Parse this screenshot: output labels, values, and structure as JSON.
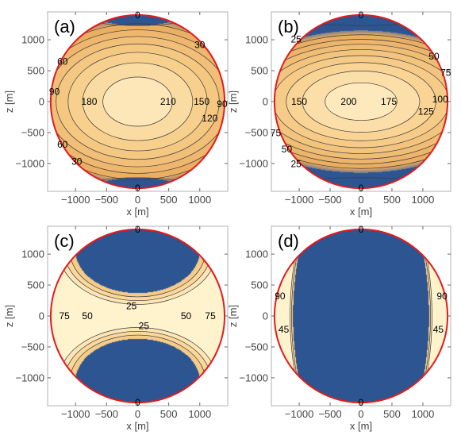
{
  "colors": {
    "dark_blue": "#2c5592",
    "circle_outline": "#e41a1c",
    "contour_line": "#3a3a3a",
    "frame": "#b0b0b0"
  },
  "chart_data": [
    {
      "type": "contour",
      "panel_label": "(a)",
      "xlabel": "x [m]",
      "ylabel": "z [m]",
      "xlim": [
        -1450,
        1450
      ],
      "ylim": [
        -1450,
        1450
      ],
      "xticks": [
        -1000,
        -500,
        0,
        500,
        1000
      ],
      "yticks": [
        -1000,
        -500,
        0,
        500,
        1000
      ],
      "xtick_labels": [
        "−1000",
        "−500",
        "0",
        "500",
        "1000"
      ],
      "ytick_labels": [
        "−1000",
        "−500",
        "0",
        "500",
        "1000"
      ],
      "domain_radius": 1400,
      "cap_level": 0,
      "field": {
        "kind": "ellipse",
        "peak": 230,
        "a": 1900,
        "b": 1350,
        "cap_a": 700
      },
      "levels": [
        30,
        60,
        90,
        120,
        150,
        180,
        210
      ],
      "contour_labels": [
        {
          "text": "0",
          "x": 0,
          "z": 1400
        },
        {
          "text": "30",
          "x": 1000,
          "z": 920
        },
        {
          "text": "60",
          "x": -1210,
          "z": 650
        },
        {
          "text": "90",
          "x": -1340,
          "z": 160
        },
        {
          "text": "180",
          "x": -780,
          "z": 0
        },
        {
          "text": "210",
          "x": 490,
          "z": 0
        },
        {
          "text": "150",
          "x": 1030,
          "z": 0
        },
        {
          "text": "90",
          "x": 1360,
          "z": -40
        },
        {
          "text": "120",
          "x": 1160,
          "z": -270
        },
        {
          "text": "60",
          "x": -1210,
          "z": -690
        },
        {
          "text": "30",
          "x": -980,
          "z": -970
        },
        {
          "text": "0",
          "x": 0,
          "z": -1400
        }
      ]
    },
    {
      "type": "contour",
      "panel_label": "(b)",
      "xlabel": "x [m]",
      "ylabel": "z [m]",
      "xlim": [
        -1450,
        1450
      ],
      "ylim": [
        -1450,
        1450
      ],
      "xticks": [
        -1000,
        -500,
        0,
        500,
        1000
      ],
      "yticks": [
        -1000,
        -500,
        0,
        500,
        1000
      ],
      "xtick_labels": [
        "−1000",
        "−500",
        "0",
        "500",
        "1000"
      ],
      "ytick_labels": [
        "−1000",
        "−500",
        "0",
        "500",
        "1000"
      ],
      "domain_radius": 1400,
      "cap_level": 0,
      "field": {
        "kind": "ellipse",
        "peak": 215,
        "a": 2200,
        "b": 1150,
        "cap_a": 1000
      },
      "levels": [
        25,
        50,
        75,
        100,
        125,
        150,
        175,
        200
      ],
      "contour_labels": [
        {
          "text": "0",
          "x": 0,
          "z": 1400
        },
        {
          "text": "25",
          "x": -1050,
          "z": 1010
        },
        {
          "text": "50",
          "x": 1180,
          "z": 730
        },
        {
          "text": "75",
          "x": 1370,
          "z": 470
        },
        {
          "text": "150",
          "x": -1000,
          "z": 0
        },
        {
          "text": "200",
          "x": -200,
          "z": 0
        },
        {
          "text": "175",
          "x": 450,
          "z": 0
        },
        {
          "text": "100",
          "x": 1280,
          "z": 40
        },
        {
          "text": "125",
          "x": 1050,
          "z": -160
        },
        {
          "text": "75",
          "x": -1380,
          "z": -510
        },
        {
          "text": "50",
          "x": -1200,
          "z": -770
        },
        {
          "text": "25",
          "x": -1050,
          "z": -1010
        },
        {
          "text": "0",
          "x": 0,
          "z": -1400
        }
      ]
    },
    {
      "type": "contour",
      "panel_label": "(c)",
      "xlabel": "x [m]",
      "ylabel": "z [m]",
      "xlim": [
        -1450,
        1450
      ],
      "ylim": [
        -1450,
        1450
      ],
      "xticks": [
        -1000,
        -500,
        0,
        500,
        1000
      ],
      "yticks": [
        -1000,
        -500,
        0,
        500,
        1000
      ],
      "xtick_labels": [
        "−1000",
        "−500",
        "0",
        "500",
        "1000"
      ],
      "ytick_labels": [
        "−1000",
        "−500",
        "0",
        "500",
        "1000"
      ],
      "domain_radius": 1400,
      "cap_level": 0,
      "field": {
        "kind": "saddle",
        "lobe_a": 1000,
        "lobe_b": 680,
        "lobe_z": 1050,
        "d0": 360
      },
      "levels": [
        25,
        50,
        75
      ],
      "contour_labels": [
        {
          "text": "0",
          "x": 0,
          "z": 1400
        },
        {
          "text": "25",
          "x": -100,
          "z": 160
        },
        {
          "text": "75",
          "x": -1180,
          "z": 0
        },
        {
          "text": "50",
          "x": -810,
          "z": 0
        },
        {
          "text": "50",
          "x": 780,
          "z": 0
        },
        {
          "text": "75",
          "x": 1170,
          "z": 0
        },
        {
          "text": "25",
          "x": 100,
          "z": -160
        },
        {
          "text": "0",
          "x": 0,
          "z": -1400
        }
      ]
    },
    {
      "type": "contour",
      "panel_label": "(d)",
      "xlabel": "x [m]",
      "ylabel": "z [m]",
      "xlim": [
        -1450,
        1450
      ],
      "ylim": [
        -1450,
        1450
      ],
      "xticks": [
        -1000,
        -500,
        0,
        500,
        1000
      ],
      "yticks": [
        -1000,
        -500,
        0,
        500,
        1000
      ],
      "xtick_labels": [
        "−1000",
        "−500",
        "0",
        "500",
        "1000"
      ],
      "ytick_labels": [
        "−1000",
        "−500",
        "0",
        "500",
        "1000"
      ],
      "domain_radius": 1400,
      "cap_level": 0,
      "field": {
        "kind": "side_band",
        "x0": 1100,
        "bulge": 180,
        "scale": 4.5
      },
      "levels": [
        45,
        90
      ],
      "contour_labels": [
        {
          "text": "0",
          "x": 0,
          "z": 1400
        },
        {
          "text": "90",
          "x": -1310,
          "z": 320
        },
        {
          "text": "90",
          "x": 1310,
          "z": 320
        },
        {
          "text": "45",
          "x": -1250,
          "z": -220
        },
        {
          "text": "45",
          "x": 1250,
          "z": -220
        },
        {
          "text": "0",
          "x": 0,
          "z": -1400
        }
      ]
    }
  ]
}
